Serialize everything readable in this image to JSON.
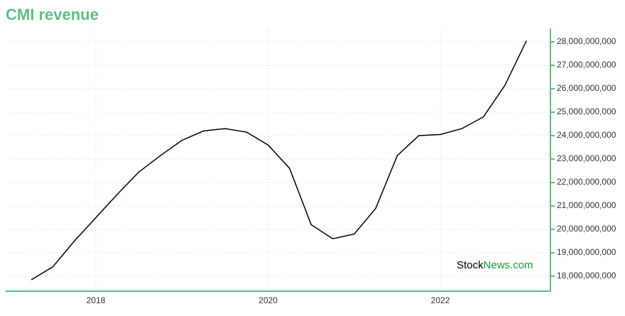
{
  "chart_data": {
    "type": "line",
    "title": "CMI revenue",
    "x": [
      2017.25,
      2017.5,
      2017.75,
      2018.0,
      2018.25,
      2018.5,
      2018.75,
      2019.0,
      2019.25,
      2019.5,
      2019.75,
      2020.0,
      2020.25,
      2020.5,
      2020.75,
      2021.0,
      2021.25,
      2021.5,
      2021.75,
      2022.0,
      2022.25,
      2022.5,
      2022.75,
      2023.0
    ],
    "series": [
      {
        "name": "CMI revenue",
        "color": "#000000",
        "values": [
          17850000000,
          18400000000,
          19500000000,
          20500000000,
          21500000000,
          22450000000,
          23150000000,
          23800000000,
          24200000000,
          24300000000,
          24150000000,
          23600000000,
          22600000000,
          20200000000,
          19600000000,
          19800000000,
          20900000000,
          23150000000,
          24000000000,
          24050000000,
          24300000000,
          24800000000,
          26150000000,
          28050000000
        ]
      }
    ],
    "xlim": [
      2016.953,
      2023.278
    ],
    "xticks": [
      2018,
      2020,
      2022
    ],
    "ylim": [
      17364000000,
      28576000000
    ],
    "yticks": [
      {
        "value": 18000000000,
        "label": "18,000,000,000"
      },
      {
        "value": 19000000000,
        "label": "19,000,000,000"
      },
      {
        "value": 20000000000,
        "label": "20,000,000,000"
      },
      {
        "value": 21000000000,
        "label": "21,000,000,000"
      },
      {
        "value": 22000000000,
        "label": "22,000,000,000"
      },
      {
        "value": 23000000000,
        "label": "23,000,000,000"
      },
      {
        "value": 24000000000,
        "label": "24,000,000,000"
      },
      {
        "value": 25000000000,
        "label": "25,000,000,000"
      },
      {
        "value": 26000000000,
        "label": "26,000,000,000"
      },
      {
        "value": 27000000000,
        "label": "27,000,000,000"
      },
      {
        "value": 28000000000,
        "label": "28,000,000,000"
      }
    ],
    "y_axis_side": "right",
    "grid": true,
    "axis_color": "#5dbf85",
    "watermark": [
      "Stock",
      "News",
      ".com"
    ]
  }
}
